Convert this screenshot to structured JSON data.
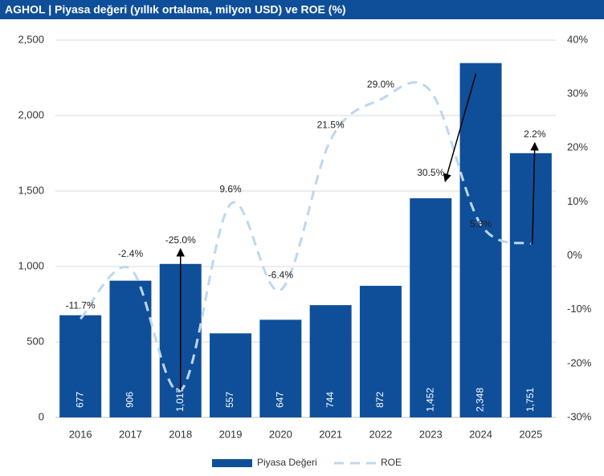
{
  "chart_data": {
    "type": "bar-line",
    "title": "AGHOL | Piyasa değeri (yıllık ortalama, milyon USD) ve ROE (%)",
    "categories": [
      "2016",
      "2017",
      "2018",
      "2019",
      "2020",
      "2021",
      "2022",
      "2023",
      "2024",
      "2025"
    ],
    "series": [
      {
        "name": "Piyasa Değeri",
        "type": "bar",
        "color": "#0f4f99",
        "values": [
          677,
          906,
          1017,
          557,
          647,
          744,
          872,
          1452,
          2348,
          1751
        ],
        "value_labels": [
          "677",
          "906",
          "1,017",
          "557",
          "647",
          "744",
          "872",
          "1,452",
          "2,348",
          "1,751"
        ]
      },
      {
        "name": "ROE",
        "type": "line",
        "axis": "y2",
        "color": "#bdd7ee",
        "values": [
          -11.7,
          -2.4,
          -25.0,
          9.6,
          -6.4,
          21.5,
          29.0,
          30.5,
          5.8,
          2.2
        ],
        "value_labels": [
          "-11.7%",
          "-2.4%",
          "-25.0%",
          "9.6%",
          "-6.4%",
          "21.5%",
          "29.0%",
          "30.5%",
          "5.8%",
          "2.2%"
        ]
      }
    ],
    "ylim": [
      0,
      2500
    ],
    "yticks": [
      0,
      500,
      {
        "value": 1000,
        "label": "1,000"
      },
      {
        "value": 1500,
        "label": "1,500"
      },
      {
        "value": 2000,
        "label": "2,000"
      },
      {
        "value": 2500,
        "label": "2,500"
      }
    ],
    "y2lim": [
      -30,
      40
    ],
    "y2ticks": [
      {
        "value": -30,
        "label": "-30%"
      },
      {
        "value": -20,
        "label": "-20%"
      },
      {
        "value": -10,
        "label": "-10%"
      },
      {
        "value": 0,
        "label": "0%"
      },
      {
        "value": 10,
        "label": "10%"
      },
      {
        "value": 20,
        "label": "20%"
      },
      {
        "value": 30,
        "label": "30%"
      },
      {
        "value": 40,
        "label": "40%"
      }
    ],
    "grid": true,
    "legend": "bottom"
  }
}
